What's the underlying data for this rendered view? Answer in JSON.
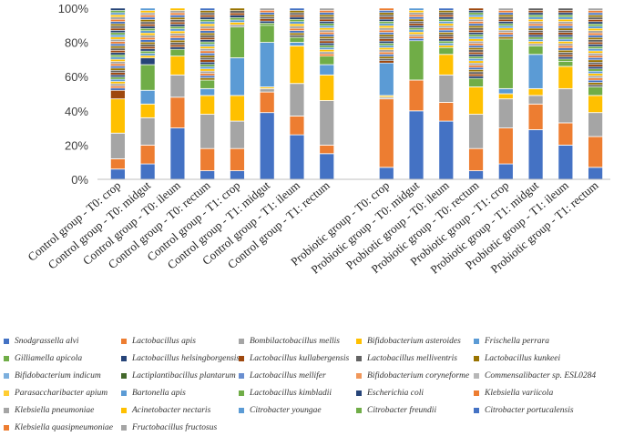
{
  "chart_data": {
    "type": "bar",
    "stacked": true,
    "percent": true,
    "title": "",
    "xlabel": "",
    "ylabel": "",
    "ylim": [
      0,
      100
    ],
    "yticks": [
      "0%",
      "20%",
      "40%",
      "60%",
      "80%",
      "100%"
    ],
    "grid": false,
    "categories": [
      "Control group - T0: crop",
      "Control group - T0: midgut",
      "Control group - T0: ileum",
      "Control group - T0: rectum",
      "Control group - T1: crop",
      "Control group - T1: midgut",
      "Control group - T1: ileum",
      "Control group - T1: rectum",
      "",
      "Probiotic group - T0: crop",
      "Probiotic group - T0: midgut",
      "Probiotic group - T0: ileum",
      "Probiotic group - T0: rectum",
      "Probiotic group - T1: crop",
      "Probiotic group - T1: midgut",
      "Probiotic group - T1: ileum",
      "Probiotic group - T1: rectum"
    ],
    "series": [
      {
        "name": "Snodgrassella alvi",
        "color": "#4472C4",
        "values": [
          6,
          9,
          30,
          5,
          5,
          39,
          26,
          15,
          0,
          7,
          40,
          34,
          5,
          9,
          29,
          20,
          7
        ]
      },
      {
        "name": "Lactobacillus apis",
        "color": "#ED7D31",
        "values": [
          6,
          11,
          18,
          13,
          13,
          12,
          11,
          5,
          0,
          40,
          18,
          11,
          13,
          21,
          15,
          13,
          18
        ]
      },
      {
        "name": "Bombilactobacillus mellis",
        "color": "#A5A5A5",
        "values": [
          15,
          16,
          13,
          20,
          16,
          2,
          19,
          26,
          0,
          1,
          0,
          16,
          20,
          17,
          5,
          20,
          14
        ]
      },
      {
        "name": "Bifidobacterium asteroides",
        "color": "#FFC000",
        "values": [
          20,
          8,
          11,
          11,
          15,
          1,
          22,
          15,
          0,
          1,
          0,
          12,
          16,
          3,
          4,
          13,
          10
        ]
      },
      {
        "name": "Frischella perrara",
        "color": "#5B9BD5",
        "values": [
          0,
          8,
          0,
          4,
          22,
          26,
          2,
          6,
          0,
          19,
          0,
          0,
          0,
          3,
          20,
          0,
          0
        ]
      },
      {
        "name": "Gilliamella apicola",
        "color": "#70AD47",
        "values": [
          0,
          15,
          4,
          5,
          18,
          10,
          3,
          5,
          0,
          0,
          23,
          4,
          5,
          29,
          5,
          3,
          5
        ]
      },
      {
        "name": "Lactobacillus helsingborgensis",
        "color": "#264478",
        "values": [
          0,
          4,
          0,
          0,
          0,
          0,
          0,
          0,
          0,
          0,
          0,
          0,
          0,
          0,
          0,
          0,
          0
        ]
      },
      {
        "name": "Lactobacillus kullabergensis",
        "color": "#9E480E",
        "values": [
          5,
          0,
          0,
          0,
          0,
          0,
          0,
          0,
          0,
          0,
          0,
          0,
          0,
          0,
          0,
          0,
          0
        ]
      },
      {
        "name": "Lactobacillus melliventris",
        "color": "#636363",
        "values": [
          0,
          0,
          0,
          0,
          0,
          0,
          0,
          0,
          0,
          0,
          0,
          0,
          0,
          0,
          0,
          0,
          0
        ]
      },
      {
        "name": "Lactobacillus kunkeei",
        "color": "#997300",
        "values": [
          0,
          0,
          0,
          0,
          0,
          0,
          0,
          0,
          0,
          0,
          0,
          0,
          0,
          0,
          0,
          0,
          0
        ]
      },
      {
        "name": "Bifidobacterium indicum",
        "color": "#7CAFDD",
        "values": [
          0,
          0,
          0,
          0,
          0,
          0,
          0,
          0,
          0,
          0,
          0,
          0,
          0,
          0,
          0,
          0,
          0
        ]
      },
      {
        "name": "Lactiplantibacillus plantarum",
        "color": "#43682B",
        "values": [
          0,
          0,
          0,
          0,
          0,
          0,
          0,
          0,
          0,
          0,
          0,
          0,
          0,
          0,
          0,
          0,
          0
        ]
      },
      {
        "name": "Lactobacillus mellifer",
        "color": "#698ED0",
        "values": [
          0,
          0,
          0,
          0,
          0,
          0,
          0,
          0,
          0,
          0,
          0,
          0,
          0,
          0,
          0,
          0,
          0
        ]
      },
      {
        "name": "Bifidobacterium coryneforme",
        "color": "#F1975A",
        "values": [
          0,
          0,
          0,
          0,
          0,
          0,
          0,
          0,
          0,
          0,
          0,
          0,
          0,
          0,
          0,
          0,
          0
        ]
      },
      {
        "name": "Commensalibacter sp. ESL0284",
        "color": "#B7B7B7",
        "values": [
          0,
          0,
          0,
          0,
          0,
          0,
          0,
          0,
          0,
          0,
          0,
          0,
          0,
          0,
          0,
          0,
          0
        ]
      },
      {
        "name": "Parasaccharibacter apium",
        "color": "#FFCD33",
        "values": [
          0,
          0,
          0,
          0,
          0,
          0,
          0,
          0,
          0,
          0,
          0,
          0,
          0,
          0,
          0,
          0,
          0
        ]
      },
      {
        "name": "Bartonella apis",
        "color": "#5B9BD5",
        "values": [
          0,
          0,
          0,
          0,
          0,
          0,
          0,
          0,
          0,
          0,
          0,
          0,
          0,
          0,
          0,
          0,
          0
        ]
      },
      {
        "name": "Lactobacillus kimbladii",
        "color": "#70AD47",
        "values": [
          0,
          0,
          0,
          0,
          0,
          0,
          0,
          0,
          0,
          0,
          0,
          0,
          0,
          0,
          0,
          0,
          0
        ]
      },
      {
        "name": "Escherichia coli",
        "color": "#264478",
        "values": [
          0,
          0,
          0,
          0,
          0,
          0,
          0,
          0,
          0,
          0,
          0,
          0,
          0,
          0,
          0,
          0,
          0
        ]
      },
      {
        "name": "Klebsiella variicola",
        "color": "#ED7D31",
        "values": [
          0,
          0,
          0,
          0,
          0,
          0,
          0,
          0,
          0,
          0,
          0,
          0,
          0,
          0,
          0,
          0,
          0
        ]
      },
      {
        "name": "Klebsiella pneumoniae",
        "color": "#A5A5A5",
        "values": [
          0,
          0,
          0,
          0,
          0,
          0,
          0,
          0,
          0,
          0,
          0,
          0,
          0,
          0,
          0,
          0,
          0
        ]
      },
      {
        "name": "Acinetobacter nectaris",
        "color": "#FFC000",
        "values": [
          0,
          0,
          0,
          0,
          0,
          0,
          0,
          0,
          0,
          0,
          0,
          0,
          0,
          0,
          0,
          0,
          0
        ]
      },
      {
        "name": "Citrobacter youngae",
        "color": "#5B9BD5",
        "values": [
          0,
          0,
          0,
          0,
          0,
          0,
          0,
          0,
          0,
          0,
          0,
          0,
          0,
          0,
          0,
          0,
          0
        ]
      },
      {
        "name": "Citrobacter freundii",
        "color": "#70AD47",
        "values": [
          0,
          0,
          0,
          0,
          0,
          0,
          0,
          0,
          0,
          0,
          0,
          0,
          0,
          0,
          0,
          0,
          0
        ]
      },
      {
        "name": "Citrobacter portucalensis",
        "color": "#4472C4",
        "values": [
          0,
          0,
          0,
          0,
          0,
          0,
          0,
          0,
          0,
          0,
          0,
          0,
          0,
          0,
          0,
          0,
          0
        ]
      },
      {
        "name": "Klebsiella quasipneumoniae",
        "color": "#ED7D31",
        "values": [
          0,
          0,
          0,
          0,
          0,
          0,
          0,
          0,
          0,
          0,
          0,
          0,
          0,
          0,
          0,
          0,
          0
        ]
      },
      {
        "name": "Fructobacillus fructosus",
        "color": "#A5A5A5",
        "values": [
          0,
          0,
          0,
          0,
          0,
          0,
          0,
          0,
          0,
          0,
          0,
          0,
          0,
          0,
          0,
          0,
          0
        ]
      }
    ],
    "remainder_palette": [
      "#4472C4",
      "#ED7D31",
      "#A5A5A5",
      "#FFC000",
      "#5B9BD5",
      "#70AD47",
      "#264478",
      "#9E480E",
      "#636363",
      "#997300"
    ]
  }
}
